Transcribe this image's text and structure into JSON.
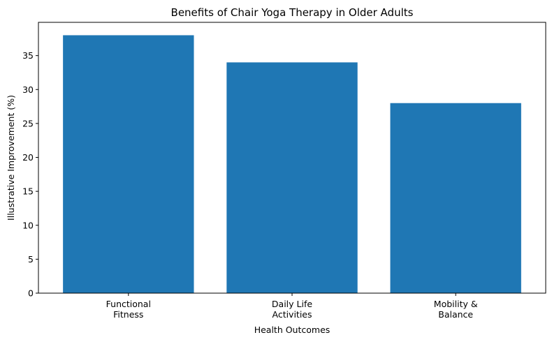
{
  "chart_data": {
    "type": "bar",
    "title": "Benefits of Chair Yoga Therapy in Older Adults",
    "x_label": "Health Outcomes",
    "y_label": "Illustrative Improvement (%)",
    "categories": [
      "Functional\nFitness",
      "Daily Life\nActivities",
      "Mobility &\nBalance"
    ],
    "values": [
      38,
      34,
      28
    ],
    "color": "#1f77b4",
    "ylim": [
      0,
      39.9
    ],
    "yticks": [
      0,
      5,
      10,
      15,
      20,
      25,
      30,
      35
    ],
    "grid": false
  }
}
